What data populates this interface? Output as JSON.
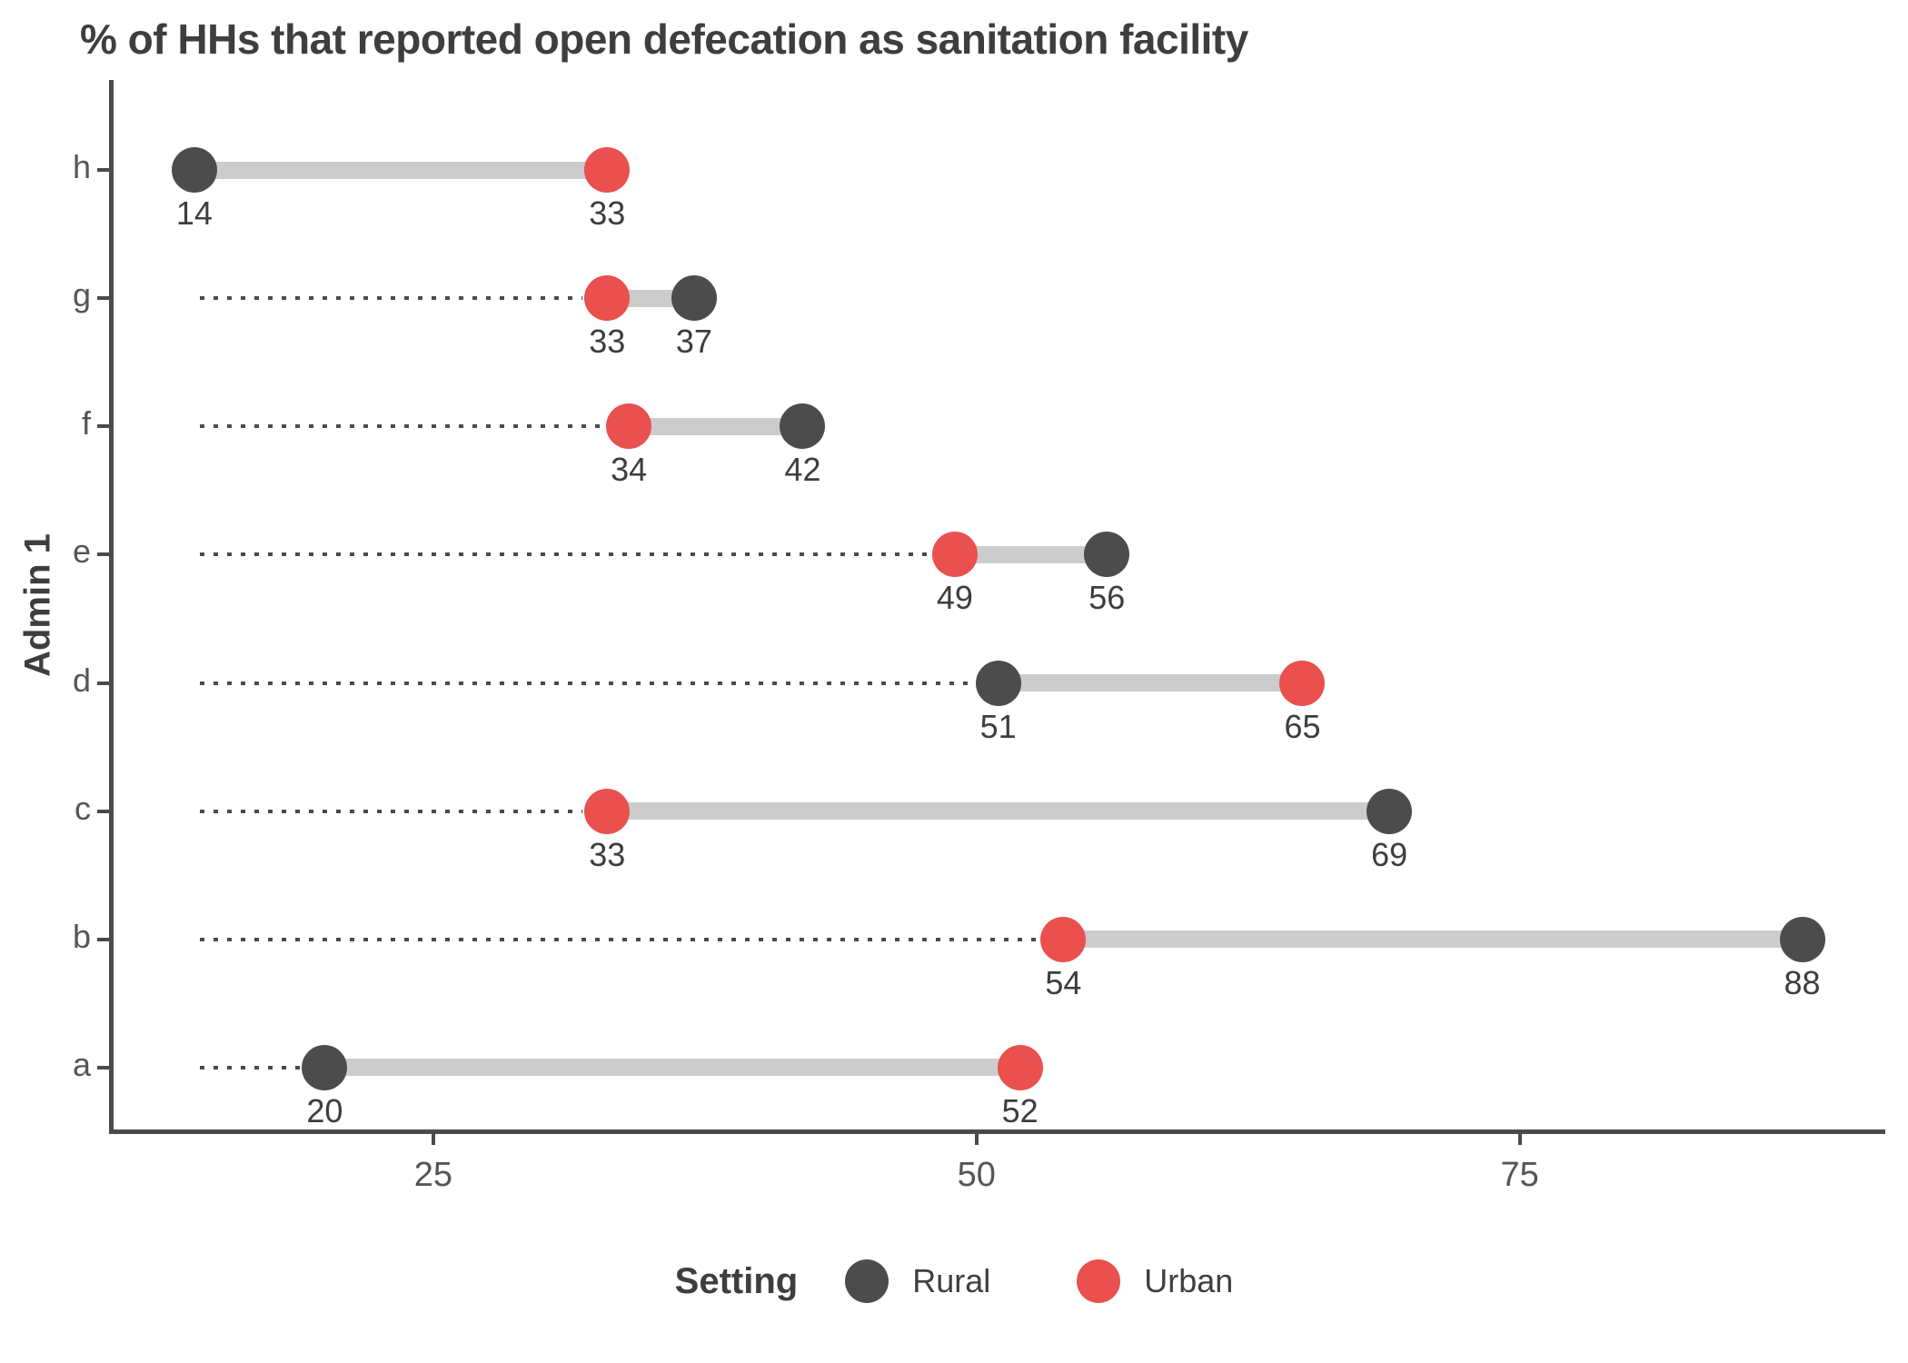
{
  "title": "% of HHs that reported open defecation as sanitation facility",
  "axes": {
    "y_title": "Admin 1",
    "x_tick_labels": [
      "25",
      "50",
      "75"
    ],
    "x_tick_values": [
      25,
      50,
      75
    ],
    "y_category_labels_top_to_bottom": [
      "h",
      "g",
      "f",
      "e",
      "d",
      "c",
      "b",
      "a"
    ]
  },
  "legend": {
    "title": "Setting",
    "items": [
      {
        "label": "Rural",
        "color": "#4d4c4c"
      },
      {
        "label": "Urban",
        "color": "#e9504e"
      }
    ]
  },
  "colors": {
    "title_text": "#3e3e3e",
    "rural_point": "#4d4c4c",
    "urban_point": "#e9504e",
    "connector_bar": "#cccccc",
    "dot_guide": "#4a4a4a",
    "axis_line": "#4a4a4a",
    "tick_label_text": "#555555",
    "value_label_text": "#3d3d3d",
    "background": "#ffffff"
  },
  "chart_data": {
    "type": "scatter",
    "variant": "dumbbell",
    "orientation": "horizontal",
    "title": "% of HHs that reported open defecation as sanitation facility",
    "xlabel": "",
    "ylabel": "Admin 1",
    "categories_top_to_bottom": [
      "h",
      "g",
      "f",
      "e",
      "d",
      "c",
      "b",
      "a"
    ],
    "series": [
      {
        "name": "Rural",
        "color": "#4d4c4c",
        "values": [
          14,
          37,
          42,
          56,
          51,
          69,
          88,
          20
        ]
      },
      {
        "name": "Urban",
        "color": "#e9504e",
        "values": [
          33,
          33,
          34,
          49,
          65,
          33,
          54,
          52
        ]
      }
    ],
    "point_value_labels_shown": true,
    "xlim": [
      10.2,
      91.7
    ],
    "x_ticks": [
      25,
      50,
      75
    ],
    "grid": false,
    "dot_guide": {
      "shown": true,
      "from_value": 14,
      "style": "dotted"
    },
    "legend_position": "bottom",
    "connector_color": "#cccccc"
  }
}
